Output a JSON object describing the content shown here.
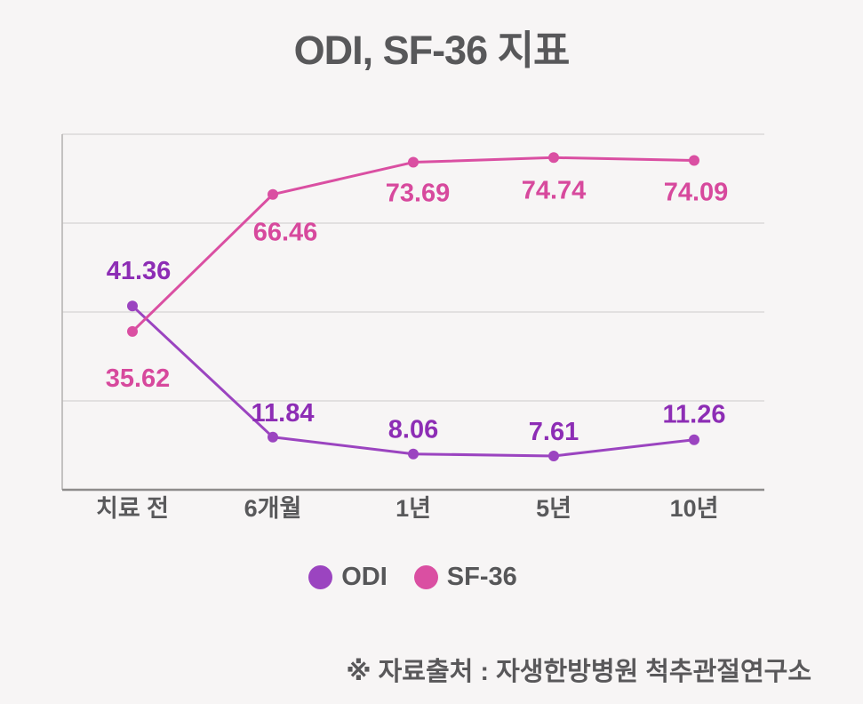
{
  "title": "ODI, SF-36 지표",
  "footer": "※ 자료출처 : 자생한방병원 척추관절연구소",
  "legend": {
    "items": [
      {
        "label": "ODI",
        "color": "#9b44c0"
      },
      {
        "label": "SF-36",
        "color": "#da4fa2"
      }
    ]
  },
  "chart_data": {
    "type": "line",
    "title": "ODI, SF-36 지표",
    "categories": [
      "치료 전",
      "6개월",
      "1년",
      "5년",
      "10년"
    ],
    "series": [
      {
        "name": "ODI",
        "color": "#9b44c0",
        "label_color": "#8d2db5",
        "label_position": "above",
        "values": [
          41.36,
          11.84,
          8.06,
          7.61,
          11.26
        ]
      },
      {
        "name": "SF-36",
        "color": "#da4fa2",
        "label_color": "#d7499d",
        "label_position": "below",
        "values": [
          35.62,
          66.46,
          73.69,
          74.74,
          74.09
        ]
      }
    ],
    "xlabel": "",
    "ylabel": "",
    "ylim": [
      0,
      80
    ],
    "y_grid_step": 20,
    "grid": true,
    "y_tick_labels_visible": false,
    "legend_position": "bottom",
    "source_note": "※ 자료출처 : 자생한방병원 척추관절연구소"
  }
}
